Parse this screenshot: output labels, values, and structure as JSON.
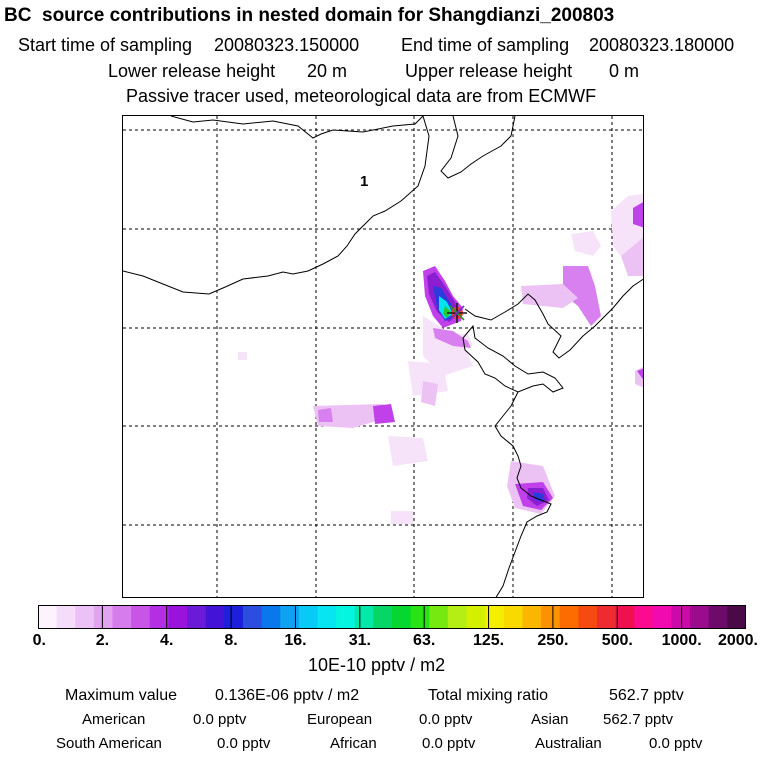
{
  "header": {
    "title": "BC  source contributions in nested domain for Shangdianzi_200803",
    "start_label": "Start time of sampling",
    "start_value": "20080323.150000",
    "end_label": "End time of sampling",
    "end_value": "20080323.180000",
    "lower_label": "Lower release height",
    "lower_value": "20 m",
    "upper_label": "Upper release height",
    "upper_value": "0 m",
    "note": "Passive tracer used, meteorological data are from ECMWF"
  },
  "map": {
    "release_label": "1",
    "colors": {
      "low": "#f6e3fa",
      "light": "#ecc2f5",
      "mid": "#d980f0",
      "strong": "#c040ea",
      "peak": "#8a1ed0",
      "blue": "#2b3cdf",
      "cyan": "#00e5f0",
      "green": "#22c73a",
      "coast": "#000000",
      "grid": "#000000"
    }
  },
  "colorbar": {
    "unit": "10E-10 pptv / m2",
    "segments": [
      "#fdf3fe",
      "#f5dcfb",
      "#ecc2f6",
      "#e2a3f1",
      "#d77cec",
      "#c954e8",
      "#b32ee4",
      "#9a13dc",
      "#6b1ad8",
      "#4314d8",
      "#1c1fdc",
      "#2b4de0",
      "#0b77ec",
      "#10a2f2",
      "#07cbf6",
      "#06e5f0",
      "#04f6e0",
      "#04e8a8",
      "#06d665",
      "#06d630",
      "#28e414",
      "#76ea10",
      "#b4ee14",
      "#d4f000",
      "#f4ee00",
      "#f9d900",
      "#fbb700",
      "#fc9200",
      "#fc6c00",
      "#f54a10",
      "#ee2b2e",
      "#f01050",
      "#fc0a90",
      "#f20ab0",
      "#cc0aa8",
      "#9a0c8c",
      "#6d0a6a",
      "#4a0a48"
    ],
    "tick_labels": [
      "0.",
      "2.",
      "4.",
      "8.",
      "16.",
      "31.",
      "63.",
      "125.",
      "250.",
      "500.",
      "1000.",
      "2000."
    ]
  },
  "stats": {
    "max_label": "Maximum value",
    "max_value": "0.136E-06 pptv / m2",
    "total_label": "Total mixing ratio",
    "total_value": "562.7 pptv",
    "american_label": "American",
    "american_value": "0.0 pptv",
    "european_label": "European",
    "european_value": "0.0 pptv",
    "asian_label": "Asian",
    "asian_value": "562.7 pptv",
    "south_american_label": "South American",
    "south_american_value": "0.0 pptv",
    "african_label": "African",
    "african_value": "0.0 pptv",
    "australian_label": "Australian",
    "australian_value": "0.0 pptv"
  }
}
